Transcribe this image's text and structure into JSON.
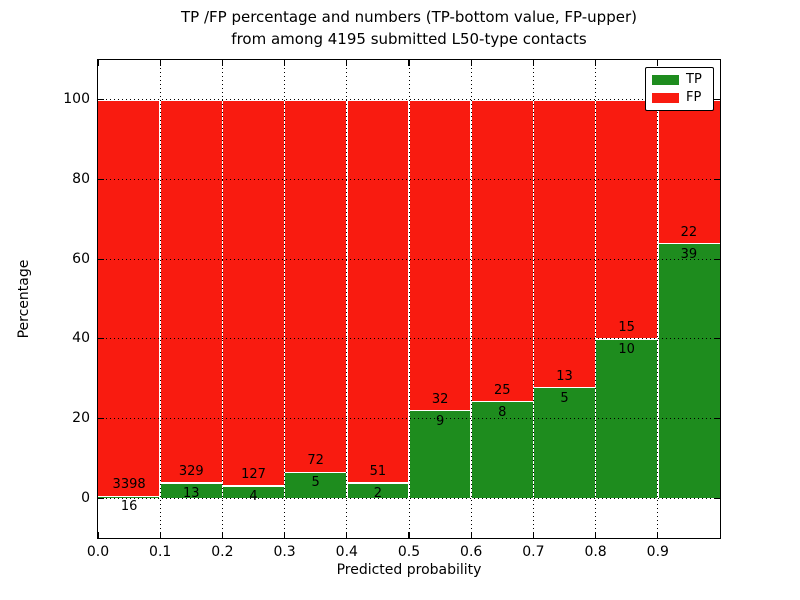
{
  "title": {
    "line1": "TP /FP percentage and numbers (TP-bottom value, FP-upper)",
    "line2": "from among 4195 submitted L50-type contacts"
  },
  "axes": {
    "xlabel": "Predicted probability",
    "ylabel": "Percentage",
    "x_tick_labels": [
      "0.0",
      "0.1",
      "0.2",
      "0.3",
      "0.4",
      "0.5",
      "0.6",
      "0.7",
      "0.8",
      "0.9"
    ],
    "x_tick_values": [
      0.0,
      0.1,
      0.2,
      0.3,
      0.4,
      0.5,
      0.6,
      0.7,
      0.8,
      0.9
    ],
    "y_tick_labels": [
      "0",
      "20",
      "40",
      "60",
      "80",
      "100"
    ],
    "y_tick_values": [
      0,
      20,
      40,
      60,
      80,
      100
    ],
    "xlim": [
      0.0,
      1.0
    ],
    "ylim": [
      -10,
      110
    ],
    "grid_style": "dotted"
  },
  "legend": {
    "position": "upper-right",
    "items": [
      {
        "label": "TP",
        "color": "#1E8C1E"
      },
      {
        "label": "FP",
        "color": "#F91B10"
      }
    ]
  },
  "colors": {
    "tp": "#1E8C1E",
    "fp": "#F91B10",
    "bar_edge": "#FFFFFF",
    "grid": "#000000",
    "background": "#FFFFFF"
  },
  "chart_data": {
    "type": "bar",
    "stacked": true,
    "normalized_to": 100,
    "title": "TP /FP percentage and numbers (TP-bottom value, FP-upper) from among 4195 submitted L50-type contacts",
    "xlabel": "Predicted probability",
    "ylabel": "Percentage",
    "total_contacts": 4195,
    "bin_width": 0.1,
    "categories": [
      "0.0-0.1",
      "0.1-0.2",
      "0.2-0.3",
      "0.3-0.4",
      "0.4-0.5",
      "0.5-0.6",
      "0.6-0.7",
      "0.7-0.8",
      "0.8-0.9",
      "0.9-1.0"
    ],
    "series": [
      {
        "name": "TP",
        "counts": [
          16,
          13,
          4,
          5,
          2,
          9,
          8,
          5,
          10,
          39
        ],
        "percent": [
          0.47,
          3.8,
          3.05,
          6.49,
          3.77,
          21.95,
          24.24,
          27.78,
          40.0,
          63.93
        ]
      },
      {
        "name": "FP",
        "counts": [
          3398,
          329,
          127,
          72,
          51,
          32,
          25,
          13,
          15,
          22
        ],
        "percent": [
          99.53,
          96.2,
          96.95,
          93.51,
          96.23,
          78.05,
          75.76,
          72.22,
          60.0,
          36.07
        ]
      }
    ]
  }
}
